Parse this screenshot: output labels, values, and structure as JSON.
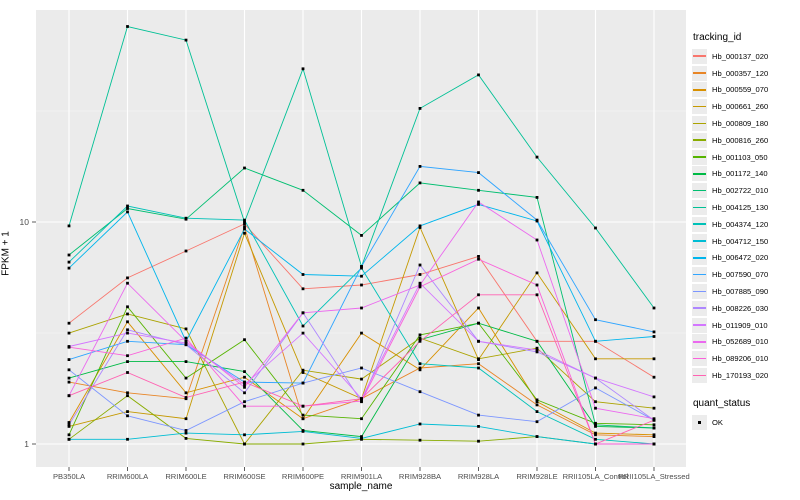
{
  "figure": {
    "background": "#FFFFFF",
    "panel_background": "#EBEBEB",
    "grid_major_color": "#FFFFFF",
    "grid_minor_color": "#F5F5F5",
    "tick_color": "#333333",
    "tick_label_color": "#4D4D4D",
    "axis_title_color": "#000000",
    "point_color": "#000000"
  },
  "y_axis": {
    "title": "FPKM + 1",
    "scale": "log10",
    "major_breaks": [
      1,
      10
    ],
    "minor_breaks": [
      3.162,
      31.62
    ],
    "tick_labels": [
      {
        "value": 10,
        "label": "10"
      },
      {
        "value": 1,
        "label": "1"
      }
    ]
  },
  "x_axis": {
    "title": "sample_name"
  },
  "legend": {
    "tracking_title": "tracking_id",
    "quant_title": "quant_status",
    "quant_items": [
      {
        "label": "OK"
      }
    ]
  },
  "chart_data": {
    "type": "line",
    "title": "",
    "xlabel": "sample_name",
    "ylabel": "FPKM + 1",
    "y_scale": "log10",
    "ylim": [
      1,
      90
    ],
    "grid": "major-and-minor, white on gray panel",
    "legend_position": "right",
    "point_marker": "small black square (quant_status = OK) at every data point",
    "categories": [
      "PB350LA",
      "RRIM600LA",
      "RRIM600LE",
      "RRIM600SE",
      "RRIM600PE",
      "RRIM901LA",
      "RRIM928BA",
      "RRIM928LA",
      "RRIM928LE",
      "RRII105LA_Control",
      "RRII105LA_Stressed"
    ],
    "series": [
      {
        "name": "Hb_000137_020",
        "color": "#F8766D",
        "values": [
          3.5,
          5.6,
          7.4,
          9.8,
          5.0,
          5.2,
          5.8,
          7.0,
          2.9,
          2.9,
          2.0
        ]
      },
      {
        "name": "Hb_000357_120",
        "color": "#E88526",
        "values": [
          1.9,
          1.7,
          1.6,
          9.5,
          1.3,
          1.6,
          2.2,
          2.3,
          1.5,
          1.1,
          1.08
        ]
      },
      {
        "name": "Hb_000559_070",
        "color": "#D89000",
        "values": [
          1.25,
          3.55,
          1.7,
          2.0,
          1.3,
          3.16,
          2.16,
          4.1,
          1.55,
          1.12,
          1.1
        ]
      },
      {
        "name": "Hb_000661_260",
        "color": "#C59900",
        "values": [
          1.2,
          1.4,
          1.3,
          8.9,
          2.1,
          1.6,
          9.45,
          2.4,
          5.9,
          2.42,
          2.42
        ]
      },
      {
        "name": "Hb_000809_180",
        "color": "#ABA300",
        "values": [
          3.16,
          3.85,
          3.3,
          1.0,
          2.15,
          1.96,
          3.0,
          2.42,
          2.7,
          1.55,
          1.45
        ]
      },
      {
        "name": "Hb_000816_260",
        "color": "#89AC00",
        "values": [
          1.05,
          1.65,
          1.06,
          1.0,
          1.0,
          1.05,
          1.04,
          1.03,
          1.08,
          1.0,
          1.0
        ]
      },
      {
        "name": "Hb_001103_050",
        "color": "#56B400",
        "values": [
          1.1,
          4.15,
          1.98,
          2.95,
          1.35,
          1.3,
          3.1,
          3.5,
          1.58,
          1.24,
          1.22
        ]
      },
      {
        "name": "Hb_001172_140",
        "color": "#00BA46",
        "values": [
          1.98,
          2.35,
          2.35,
          2.12,
          1.15,
          1.08,
          2.95,
          3.5,
          2.9,
          1.2,
          1.18
        ]
      },
      {
        "name": "Hb_002722_010",
        "color": "#00BE70",
        "values": [
          7.1,
          11.5,
          10.3,
          17.5,
          13.9,
          8.7,
          15.0,
          13.9,
          12.9,
          1.22,
          1.18
        ]
      },
      {
        "name": "Hb_004125_130",
        "color": "#00C095",
        "values": [
          9.6,
          76,
          66,
          10.0,
          49,
          6.3,
          32.5,
          46,
          19.6,
          9.4,
          4.1
        ]
      },
      {
        "name": "Hb_004374_120",
        "color": "#00C1B7",
        "values": [
          6.6,
          11.8,
          10.4,
          10.2,
          3.4,
          6.2,
          2.3,
          2.2,
          1.4,
          1.05,
          1.0
        ]
      },
      {
        "name": "Hb_004712_150",
        "color": "#00BDD4",
        "values": [
          1.05,
          1.05,
          1.12,
          1.1,
          1.14,
          1.06,
          1.23,
          1.2,
          1.08,
          1.0,
          1.0
        ]
      },
      {
        "name": "Hb_006472_020",
        "color": "#00B5EC",
        "values": [
          6.2,
          11.1,
          2.9,
          9.3,
          5.8,
          5.7,
          9.6,
          12.0,
          10.1,
          2.9,
          3.05
        ]
      },
      {
        "name": "Hb_007590_070",
        "color": "#30A5FF",
        "values": [
          2.4,
          2.9,
          2.8,
          1.9,
          1.88,
          6.3,
          17.8,
          16.7,
          10.2,
          3.63,
          3.2
        ]
      },
      {
        "name": "Hb_007885_090",
        "color": "#7C96FF",
        "values": [
          2.16,
          1.34,
          1.15,
          1.55,
          1.88,
          2.2,
          1.72,
          1.35,
          1.26,
          1.79,
          1.28
        ]
      },
      {
        "name": "Hb_008226_030",
        "color": "#AE87FF",
        "values": [
          1.22,
          3.27,
          2.8,
          1.7,
          3.9,
          1.55,
          6.4,
          2.9,
          2.6,
          1.98,
          1.28
        ]
      },
      {
        "name": "Hb_011909_010",
        "color": "#D376FF",
        "values": [
          2.75,
          3.16,
          2.85,
          1.85,
          3.16,
          1.6,
          5.3,
          2.9,
          2.65,
          1.98,
          1.63
        ]
      },
      {
        "name": "Hb_052689_010",
        "color": "#EB69EF",
        "values": [
          1.65,
          5.3,
          2.9,
          1.8,
          3.9,
          4.1,
          5.2,
          12.3,
          8.3,
          1.45,
          1.3
        ]
      },
      {
        "name": "Hb_089206_010",
        "color": "#FA62DB",
        "values": [
          2.73,
          2.5,
          3.0,
          1.48,
          1.48,
          1.56,
          5.1,
          6.8,
          5.2,
          1.0,
          1.0
        ]
      },
      {
        "name": "Hb_170193_020",
        "color": "#FF62B2",
        "values": [
          1.65,
          2.1,
          1.62,
          1.9,
          1.48,
          1.6,
          2.9,
          4.7,
          4.7,
          1.0,
          1.28
        ]
      }
    ]
  }
}
